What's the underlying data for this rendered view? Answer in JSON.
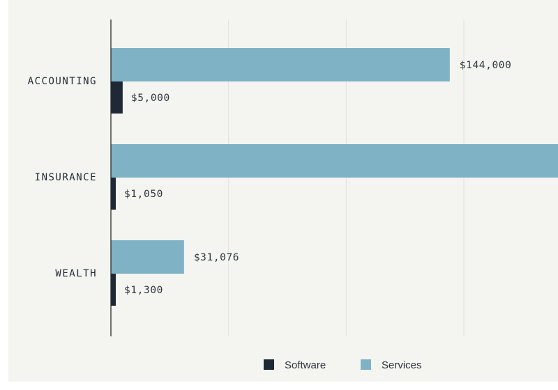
{
  "colors": {
    "page_background": "#ffffff",
    "chart_background": "#f4f4f0",
    "software": "#1e2935",
    "services": "#7fb2c4",
    "gridline": "#e2e2dc",
    "axis": "#2a2a2a"
  },
  "chart_data": {
    "type": "bar",
    "orientation": "horizontal",
    "categories": [
      "ACCOUNTING",
      "INSURANCE",
      "WEALTH"
    ],
    "series": [
      {
        "name": "Services",
        "values": [
          144000,
          190000,
          31076
        ],
        "labels": [
          "$144,000",
          "",
          "$31,076"
        ]
      },
      {
        "name": "Software",
        "values": [
          5000,
          1050,
          1300
        ],
        "labels": [
          "$5,000",
          "$1,050",
          "$1,300"
        ]
      }
    ],
    "xlim": [
      0,
      190000
    ],
    "grid": true,
    "legend_position": "bottom-center"
  }
}
